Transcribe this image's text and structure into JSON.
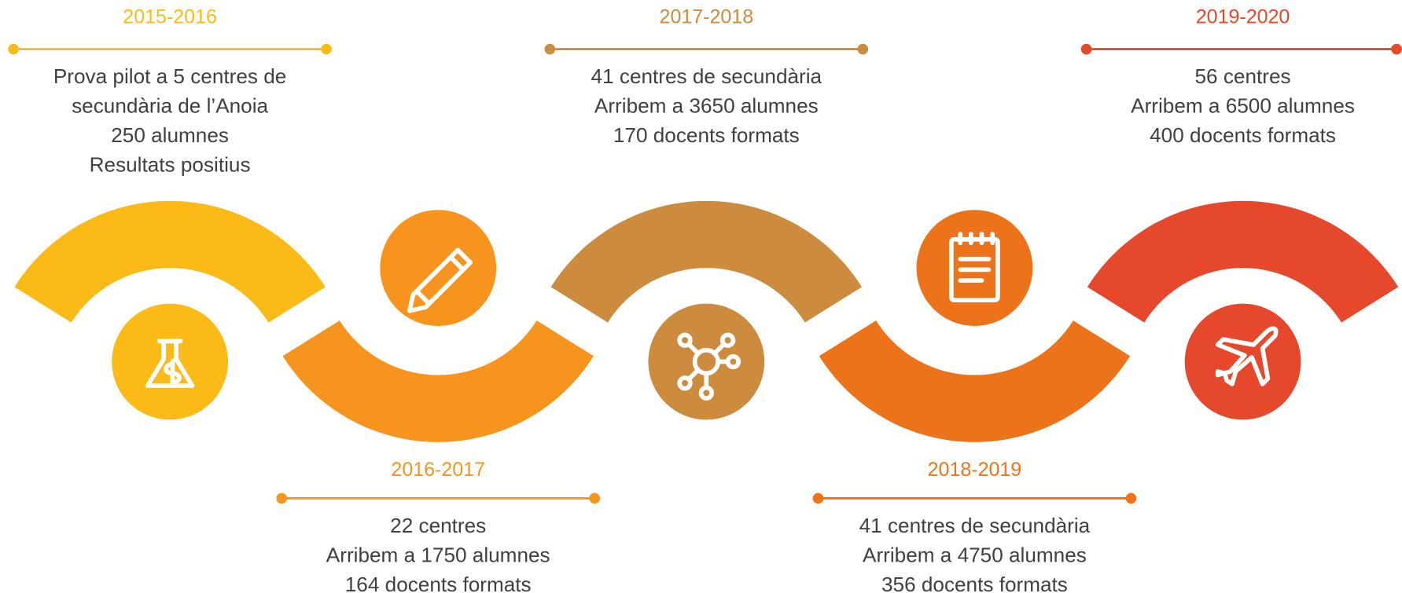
{
  "milestones": [
    {
      "year": "2015-2016",
      "lines": [
        "Prova pilot a 5 centres de",
        "secundària de l’Anoia",
        "250 alumnes",
        "Resultats positius"
      ]
    },
    {
      "year": "2016-2017",
      "lines": [
        "22 centres",
        "Arribem a 1750 alumnes",
        "164 docents formats"
      ]
    },
    {
      "year": "2017-2018",
      "lines": [
        "41 centres de secundària",
        "Arribem a 3650 alumnes",
        "170 docents formats"
      ]
    },
    {
      "year": "2018-2019",
      "lines": [
        "41 centres de secundària",
        "Arribem a 4750 alumnes",
        "356 docents formats"
      ]
    },
    {
      "year": "2019-2020",
      "lines": [
        "56 centres",
        "Arribem a 6500 alumnes",
        "400 docents formats"
      ]
    }
  ]
}
